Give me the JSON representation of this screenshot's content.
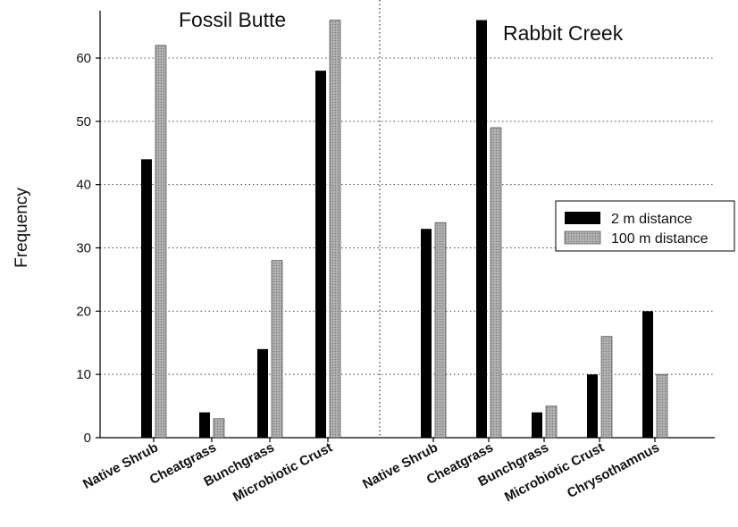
{
  "chart_data": {
    "type": "bar",
    "ylabel": "Frequency",
    "ylim": [
      0,
      68
    ],
    "yticks": [
      0,
      10,
      20,
      30,
      40,
      50,
      60
    ],
    "grid": "horizontal-dotted",
    "legend_placement": "right",
    "series": [
      {
        "name": "2 m distance",
        "color": "#000000"
      },
      {
        "name": "100 m distance",
        "color": "#a0a0a0"
      }
    ],
    "panels": [
      {
        "title": "Fossil Butte",
        "categories": [
          "Native Shrub",
          "Cheatgrass",
          "Bunchgrass",
          "Microbiotic Crust"
        ],
        "values": [
          [
            44,
            62
          ],
          [
            4,
            3
          ],
          [
            14,
            28
          ],
          [
            58,
            66
          ]
        ]
      },
      {
        "title": "Rabbit Creek",
        "categories": [
          "Native Shrub",
          "Cheatgrass",
          "Bunchgrass",
          "Microbiotic Crust",
          "Chrysothamnus"
        ],
        "values": [
          [
            33,
            34
          ],
          [
            66,
            49
          ],
          [
            4,
            5
          ],
          [
            10,
            16
          ],
          [
            20,
            10
          ]
        ]
      }
    ]
  }
}
